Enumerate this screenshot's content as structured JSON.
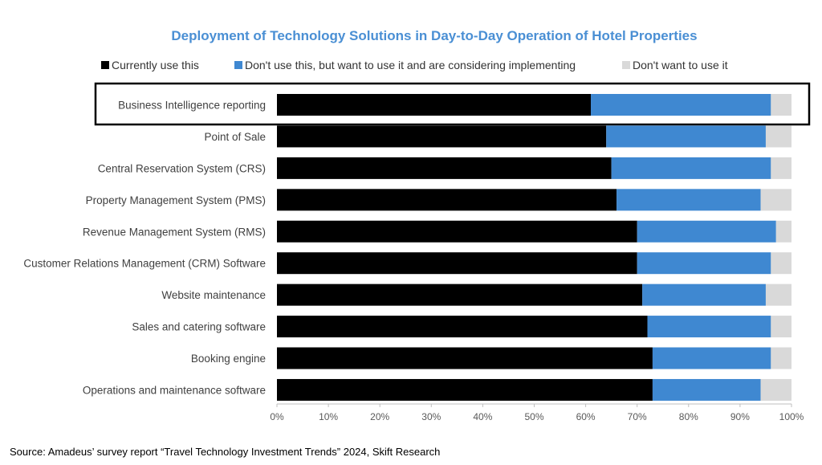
{
  "chart_data": {
    "type": "bar",
    "orientation": "horizontal",
    "stacked": true,
    "title": "Deployment of Technology Solutions in Day-to-Day Operation of Hotel Properties",
    "categories": [
      "Business Intelligence reporting",
      "Point of Sale",
      "Central Reservation System (CRS)",
      "Property Management System (PMS)",
      "Revenue Management System (RMS)",
      "Customer Relations Management (CRM) Software",
      "Website maintenance",
      "Sales and catering software",
      "Booking engine",
      "Operations and maintenance software"
    ],
    "series": [
      {
        "name": "Currently use this",
        "values": [
          61,
          64,
          65,
          66,
          70,
          70,
          71,
          72,
          73,
          73
        ]
      },
      {
        "name": "Don't use this, but want to use it and are considering implementing",
        "values": [
          35,
          31,
          31,
          28,
          27,
          26,
          24,
          24,
          23,
          21
        ]
      },
      {
        "name": "Don't want to use it",
        "values": [
          4,
          5,
          4,
          6,
          3,
          4,
          5,
          4,
          4,
          6
        ]
      }
    ],
    "xlim": [
      0,
      100
    ],
    "x_ticks": [
      "0%",
      "10%",
      "20%",
      "30%",
      "40%",
      "50%",
      "60%",
      "70%",
      "80%",
      "90%",
      "100%"
    ],
    "highlighted_category": "Business Intelligence reporting",
    "legend_position": "top",
    "grid": false,
    "source": "Source: Amadeus’ survey report “Travel Technology Investment Trends” 2024, Skift Research"
  },
  "colors": {
    "title": "#4a8fd4",
    "series": [
      "#000000",
      "#3f88d1",
      "#d9d9d9"
    ],
    "highlight_border": "#000000"
  }
}
